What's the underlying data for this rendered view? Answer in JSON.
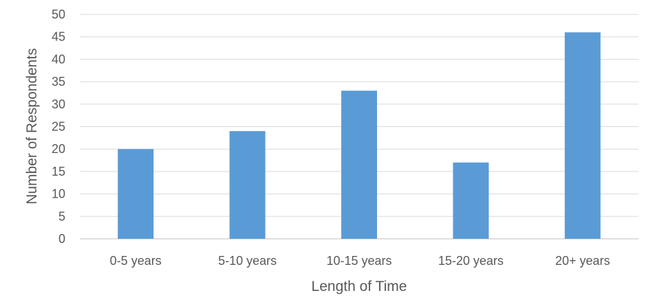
{
  "chart_data": {
    "type": "bar",
    "title": "",
    "xlabel": "Length of Time",
    "ylabel": "Number of Respondents",
    "categories": [
      "0-5 years",
      "5-10 years",
      "10-15 years",
      "15-20 years",
      "20+ years"
    ],
    "values": [
      20,
      24,
      33,
      17,
      46
    ],
    "ylim": [
      0,
      50
    ],
    "yticks": [
      "0",
      "5",
      "10",
      "15",
      "20",
      "25",
      "30",
      "35",
      "40",
      "45",
      "50"
    ],
    "grid": true,
    "legend": "none",
    "bar_color": "#5b9bd5"
  }
}
